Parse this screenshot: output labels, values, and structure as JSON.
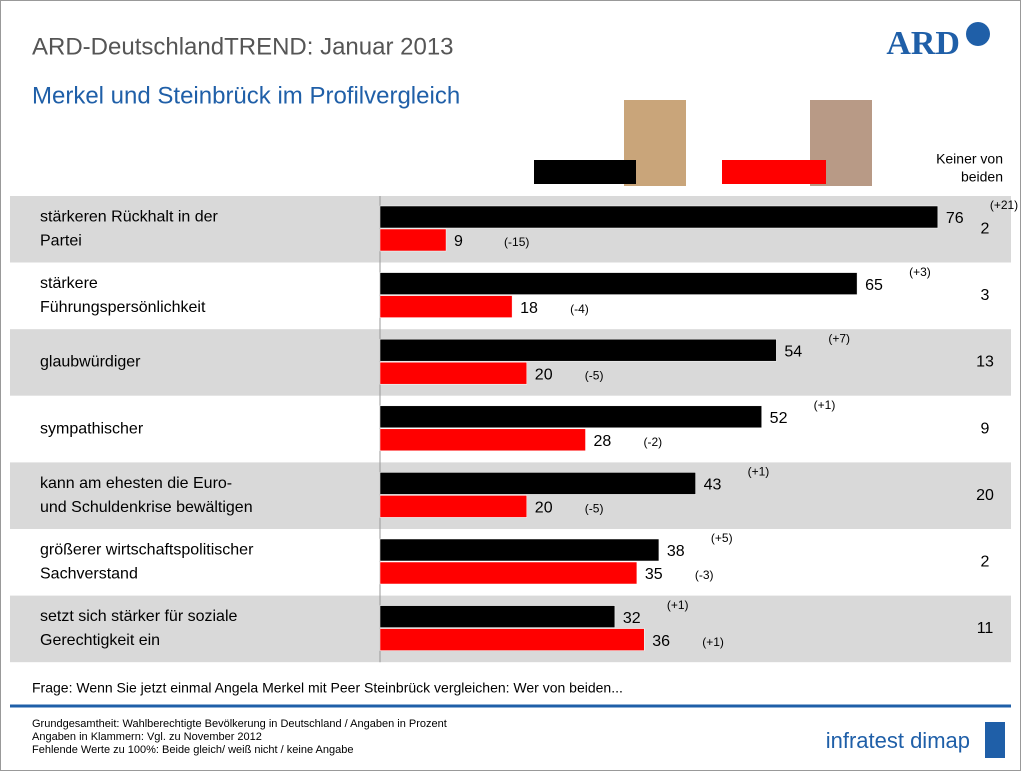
{
  "header": {
    "title": "ARD-DeutschlandTREND: Januar 2013",
    "subtitle": "Merkel und Steinbrück im Profilvergleich",
    "logo": "ARD"
  },
  "chart_data": {
    "type": "paired-bar",
    "categories": [
      [
        "stärkeren Rückhalt in der",
        "Partei"
      ],
      [
        "stärkere",
        "Führungspersönlichkeit"
      ],
      [
        "glaubwürdiger"
      ],
      [
        "sympathischer"
      ],
      [
        "kann am ehesten die Euro-",
        "und Schuldenkrise bewältigen"
      ],
      [
        "größerer wirtschaftspolitischer",
        "Sachverstand"
      ],
      [
        "setzt sich stärker für soziale",
        "Gerechtigkeit ein"
      ]
    ],
    "series": [
      {
        "color": "#000000",
        "values": [
          76,
          65,
          54,
          52,
          43,
          38,
          32
        ],
        "changes": [
          "(+21)",
          "(+3)",
          "(+7)",
          "(+1)",
          "(+1)",
          "(+5)",
          "(+1)"
        ]
      },
      {
        "color": "#ff0000",
        "values": [
          9,
          18,
          20,
          28,
          20,
          35,
          36
        ],
        "changes": [
          "(-15)",
          "(-4)",
          "(-5)",
          "(-2)",
          "(-5)",
          "(-3)",
          "(+1)"
        ]
      }
    ],
    "none_header": [
      "Keiner von",
      "beiden"
    ],
    "none_values": [
      2,
      3,
      13,
      9,
      20,
      2,
      11
    ]
  },
  "question": "Frage: Wenn Sie jetzt einmal Angela Merkel mit Peer Steinbrück vergleichen: Wer von beiden...",
  "footnotes": [
    "Grundgesamtheit: Wahlberechtigte Bevölkerung in Deutschland / Angaben in Prozent",
    "Angaben in Klammern: Vgl. zu November 2012",
    "Fehlende Werte zu 100%: Beide gleich/ weiß nicht / keine Angabe"
  ],
  "footer_logo": "infratest dimap"
}
